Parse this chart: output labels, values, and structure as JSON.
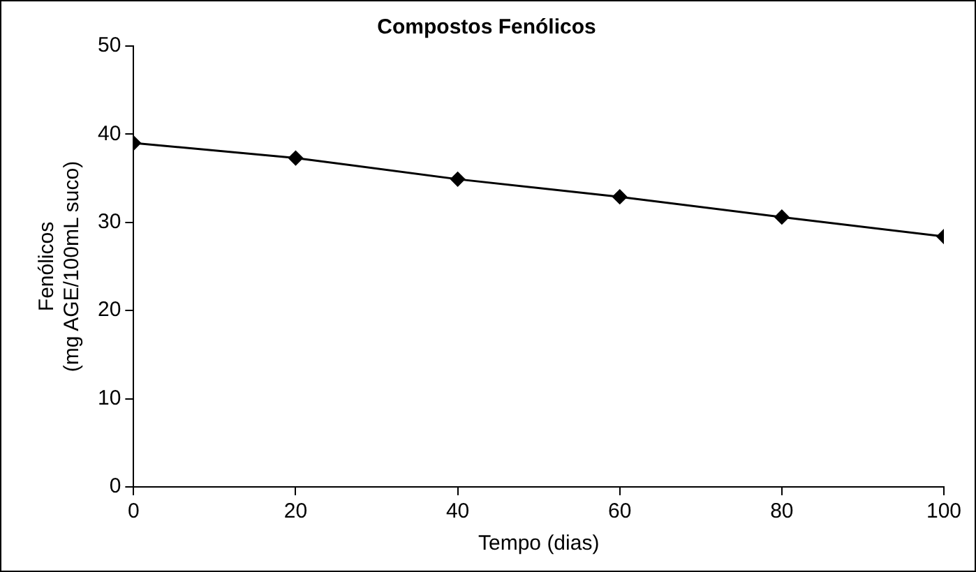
{
  "chart_data": {
    "type": "line",
    "title": "Compostos Fenólicos",
    "xlabel": "Tempo (dias)",
    "ylabel": "Fenólicos\n(mg AGE/100mL suco)",
    "x": [
      0,
      20,
      40,
      60,
      80,
      100
    ],
    "series": [
      {
        "color": "#000000",
        "values": [
          39,
          37.3,
          34.9,
          32.9,
          30.6,
          28.4
        ]
      }
    ],
    "xlim": [
      0,
      100
    ],
    "xticks": [
      0,
      20,
      40,
      60,
      80,
      100
    ],
    "ylim": [
      0,
      50
    ],
    "yticks": [
      0,
      10,
      20,
      30,
      40,
      50
    ],
    "grid": false,
    "legend": false,
    "marker": "diamond",
    "line_style": "solid"
  }
}
